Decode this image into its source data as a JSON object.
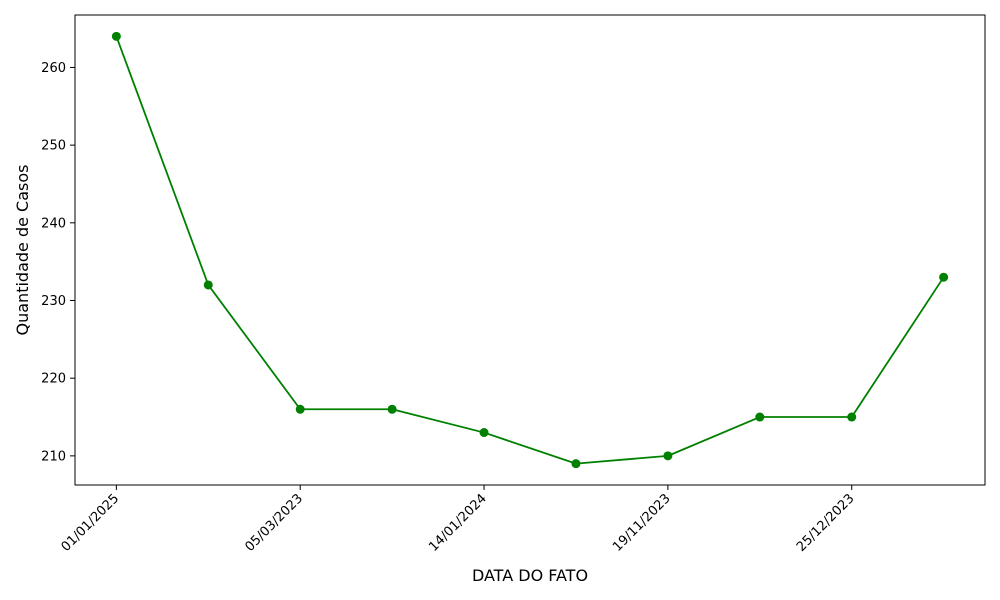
{
  "chart_data": {
    "type": "line",
    "title": "",
    "xlabel": "DATA DO FATO",
    "ylabel": "Quantidade de Casos",
    "x_tick_labels": [
      "01/01/2025",
      "05/03/2023",
      "14/01/2024",
      "19/11/2023",
      "25/12/2023"
    ],
    "x_tick_positions": [
      0,
      2,
      4,
      6,
      8
    ],
    "y_ticks": [
      210,
      220,
      230,
      240,
      250,
      260
    ],
    "ylim": [
      206.25,
      266.75
    ],
    "xlim": [
      -0.45,
      9.45
    ],
    "grid": false,
    "legend": "none",
    "series": [
      {
        "color": "#008000",
        "marker": "circle",
        "values": [
          264,
          232,
          216,
          216,
          213,
          209,
          210,
          215,
          215,
          233
        ]
      }
    ]
  }
}
